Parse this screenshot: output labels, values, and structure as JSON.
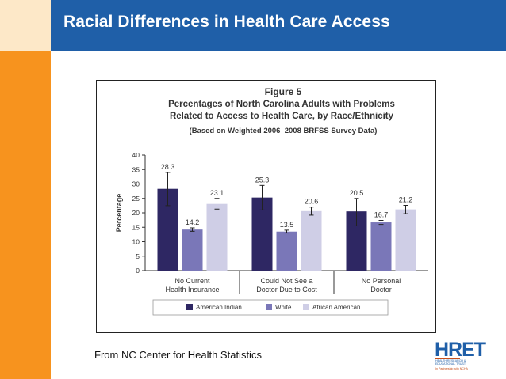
{
  "slide": {
    "title": "Racial Differences in Health Care Access",
    "source": "From NC Center for Health Statistics"
  },
  "logo": {
    "name": "HRET",
    "line1": "HEALTH RESEARCH &",
    "line2": "EDUCATIONAL TRUST",
    "line3": "In Partnership with NCHA"
  },
  "colors": {
    "title_bar": "#1f5fa8",
    "side_bar": "#f7931e",
    "american_indian": "#2e2763",
    "white": "#7a77b8",
    "african_american": "#cfcee6"
  },
  "chart_data": {
    "type": "bar",
    "figure_label": "Figure 5",
    "title_line1": "Percentages of North Carolina Adults with Problems",
    "title_line2": "Related to Access to Health Care, by Race/Ethnicity",
    "subtitle": "(Based on Weighted 2006–2008 BRFSS Survey Data)",
    "ylabel": "Percentage",
    "xlabel": "",
    "ylim": [
      0,
      40
    ],
    "yticks": [
      "0",
      "5",
      "10",
      "15",
      "20",
      "25",
      "30",
      "35",
      "40"
    ],
    "grid": false,
    "categories": [
      [
        "No Current",
        "Health Insurance"
      ],
      [
        "Could Not See a",
        "Doctor Due to Cost"
      ],
      [
        "No Personal",
        "Doctor"
      ]
    ],
    "series": [
      {
        "name": "American Indian",
        "values": [
          28.3,
          25.3,
          20.5
        ],
        "labels": [
          "28.3",
          "25.3",
          "20.5"
        ],
        "error_low": [
          22.5,
          21.0,
          15.5
        ],
        "error_high": [
          34.0,
          29.5,
          25.0
        ]
      },
      {
        "name": "White",
        "values": [
          14.2,
          13.5,
          16.7
        ],
        "labels": [
          "14.2",
          "13.5",
          "16.7"
        ],
        "error_low": [
          13.6,
          13.0,
          16.0
        ],
        "error_high": [
          14.8,
          14.0,
          17.4
        ]
      },
      {
        "name": "African American",
        "values": [
          23.1,
          20.6,
          21.2
        ],
        "labels": [
          "23.1",
          "20.6",
          "21.2"
        ],
        "error_low": [
          21.3,
          19.2,
          19.7
        ],
        "error_high": [
          25.0,
          22.0,
          22.6
        ]
      }
    ],
    "legend": [
      "American Indian",
      "White",
      "African American"
    ]
  }
}
